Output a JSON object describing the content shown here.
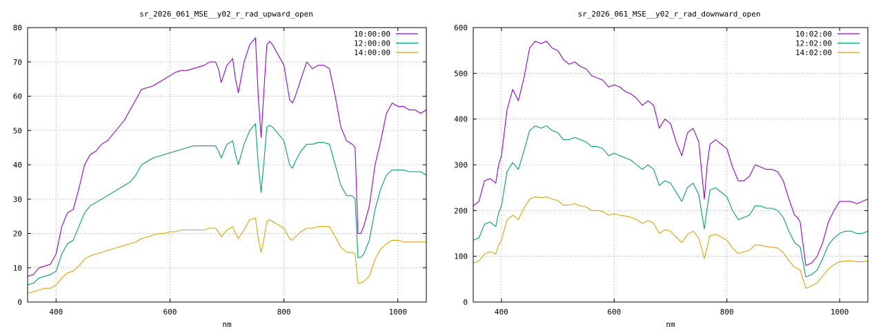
{
  "chart_data": [
    {
      "type": "line",
      "title": "sr_2026_061_MSE__y02_r_rad_upward_open",
      "xlabel": "nm",
      "ylabel": "",
      "xlim": [
        350,
        1050
      ],
      "ylim": [
        0,
        80
      ],
      "xticks": [
        400,
        600,
        800,
        1000
      ],
      "yticks": [
        0,
        10,
        20,
        30,
        40,
        50,
        60,
        70,
        80
      ],
      "grid": true,
      "legend": "top-right",
      "x": [
        350,
        360,
        370,
        380,
        390,
        400,
        410,
        420,
        430,
        440,
        450,
        460,
        470,
        480,
        490,
        500,
        510,
        520,
        530,
        540,
        550,
        560,
        570,
        580,
        590,
        600,
        610,
        620,
        630,
        640,
        650,
        660,
        670,
        680,
        685,
        690,
        700,
        710,
        715,
        720,
        730,
        740,
        750,
        755,
        760,
        765,
        770,
        775,
        780,
        790,
        800,
        810,
        815,
        820,
        830,
        840,
        850,
        860,
        870,
        880,
        890,
        900,
        910,
        920,
        925,
        930,
        935,
        940,
        950,
        960,
        970,
        980,
        990,
        1000,
        1010,
        1020,
        1030,
        1040,
        1050
      ],
      "series": [
        {
          "name": "10:00:00",
          "color": "#9400d3",
          "values": [
            7.5,
            8,
            10,
            10.5,
            11,
            14,
            22,
            26,
            27,
            33,
            40,
            43,
            44,
            46,
            47,
            49,
            51,
            53,
            56,
            59,
            62,
            62.5,
            63,
            64,
            65,
            66,
            67,
            67.5,
            67.5,
            68,
            68.5,
            69,
            70,
            70,
            68,
            64,
            69,
            71,
            65,
            61,
            70,
            75,
            77,
            60,
            48,
            62,
            75,
            76,
            75,
            72,
            69,
            59,
            58,
            60,
            65,
            70,
            68,
            69,
            69,
            68,
            60,
            51,
            47,
            46,
            45,
            20,
            20,
            22,
            28,
            40,
            47,
            55,
            58,
            57,
            57,
            56,
            56,
            55,
            56
          ]
        },
        {
          "name": "12:00:00",
          "color": "#009e73",
          "values": [
            5,
            5.5,
            7,
            7.5,
            8,
            9,
            14,
            17,
            18,
            22,
            26,
            28,
            29,
            30,
            31,
            32,
            33,
            34,
            35,
            37,
            40,
            41,
            42,
            42.5,
            43,
            43.5,
            44,
            44.5,
            45,
            45.5,
            45.5,
            45.5,
            45.5,
            45.5,
            44,
            42,
            46,
            47,
            43,
            40,
            46,
            50,
            52,
            40,
            32,
            41,
            51,
            51.5,
            51,
            49,
            47,
            40,
            39,
            41,
            44,
            46,
            46,
            46.5,
            46.5,
            46,
            40,
            34,
            31,
            31,
            30,
            13,
            13,
            14,
            18,
            27,
            33,
            37,
            38.5,
            38.5,
            38.5,
            38,
            38,
            38,
            37
          ]
        },
        {
          "name": "14:00:00",
          "color": "#e69f00",
          "values": [
            2.5,
            3,
            3.5,
            4,
            4,
            5,
            7,
            8.5,
            9,
            10.5,
            12.5,
            13.5,
            14,
            14.5,
            15,
            15.5,
            16,
            16.5,
            17,
            17.5,
            18.5,
            19,
            19.5,
            20,
            20,
            20.5,
            20.5,
            21,
            21,
            21,
            21,
            21,
            21.5,
            21.5,
            20.5,
            19,
            21,
            22,
            20,
            18.5,
            21,
            24,
            24.5,
            18.5,
            14.5,
            18.5,
            23.5,
            24,
            23.5,
            22.5,
            21.5,
            18.5,
            18,
            19,
            20.5,
            21.5,
            21.5,
            22,
            22,
            22,
            19,
            16,
            14.5,
            14.5,
            14,
            5.5,
            5.5,
            6,
            7.5,
            12.5,
            15.5,
            17,
            18,
            18,
            17.5,
            17.5,
            17.5,
            17.5,
            17.5
          ]
        }
      ]
    },
    {
      "type": "line",
      "title": "sr_2026_061_MSE__y02_r_rad_downward_open",
      "xlabel": "nm",
      "ylabel": "",
      "xlim": [
        350,
        1050
      ],
      "ylim": [
        0,
        600
      ],
      "xticks": [
        400,
        600,
        800,
        1000
      ],
      "yticks": [
        0,
        100,
        200,
        300,
        400,
        500,
        600
      ],
      "grid": true,
      "legend": "top-right",
      "x": [
        350,
        360,
        370,
        380,
        390,
        395,
        400,
        410,
        420,
        430,
        440,
        450,
        460,
        470,
        480,
        490,
        500,
        510,
        520,
        530,
        540,
        550,
        560,
        570,
        580,
        590,
        600,
        610,
        620,
        630,
        640,
        650,
        660,
        670,
        680,
        690,
        700,
        710,
        720,
        730,
        740,
        750,
        760,
        765,
        770,
        780,
        790,
        800,
        810,
        820,
        830,
        840,
        850,
        860,
        870,
        880,
        890,
        900,
        910,
        920,
        925,
        930,
        940,
        950,
        960,
        970,
        980,
        990,
        1000,
        1010,
        1020,
        1030,
        1040,
        1050
      ],
      "series": [
        {
          "name": "10:02:00",
          "color": "#9400d3",
          "values": [
            210,
            220,
            265,
            270,
            260,
            300,
            320,
            420,
            465,
            440,
            490,
            555,
            570,
            565,
            570,
            555,
            550,
            530,
            520,
            525,
            515,
            510,
            495,
            490,
            485,
            470,
            475,
            470,
            460,
            455,
            445,
            430,
            440,
            430,
            380,
            400,
            390,
            350,
            320,
            370,
            380,
            350,
            225,
            300,
            345,
            355,
            345,
            335,
            295,
            265,
            265,
            275,
            300,
            295,
            290,
            290,
            285,
            265,
            225,
            190,
            185,
            175,
            80,
            85,
            100,
            130,
            175,
            200,
            220,
            220,
            220,
            215,
            220,
            225
          ]
        },
        {
          "name": "12:02:00",
          "color": "#009e73",
          "values": [
            135,
            140,
            170,
            175,
            165,
            195,
            210,
            285,
            305,
            290,
            330,
            375,
            385,
            380,
            385,
            375,
            370,
            355,
            355,
            360,
            355,
            350,
            340,
            340,
            335,
            320,
            325,
            320,
            315,
            310,
            300,
            290,
            300,
            290,
            255,
            265,
            260,
            240,
            220,
            250,
            260,
            235,
            160,
            205,
            245,
            250,
            240,
            230,
            200,
            180,
            185,
            190,
            210,
            210,
            205,
            205,
            200,
            185,
            155,
            130,
            125,
            120,
            55,
            60,
            70,
            95,
            125,
            140,
            150,
            155,
            155,
            150,
            150,
            155
          ]
        },
        {
          "name": "14:02:00",
          "color": "#e69f00",
          "values": [
            85,
            90,
            105,
            110,
            105,
            125,
            135,
            180,
            190,
            180,
            205,
            225,
            230,
            228,
            230,
            225,
            222,
            212,
            212,
            215,
            210,
            208,
            200,
            200,
            198,
            190,
            193,
            190,
            188,
            185,
            180,
            172,
            178,
            172,
            150,
            158,
            155,
            142,
            130,
            148,
            155,
            140,
            95,
            120,
            145,
            148,
            142,
            135,
            118,
            106,
            110,
            113,
            125,
            124,
            121,
            120,
            118,
            108,
            90,
            76,
            74,
            70,
            30,
            35,
            42,
            57,
            72,
            82,
            88,
            90,
            90,
            88,
            88,
            90
          ]
        }
      ]
    }
  ]
}
